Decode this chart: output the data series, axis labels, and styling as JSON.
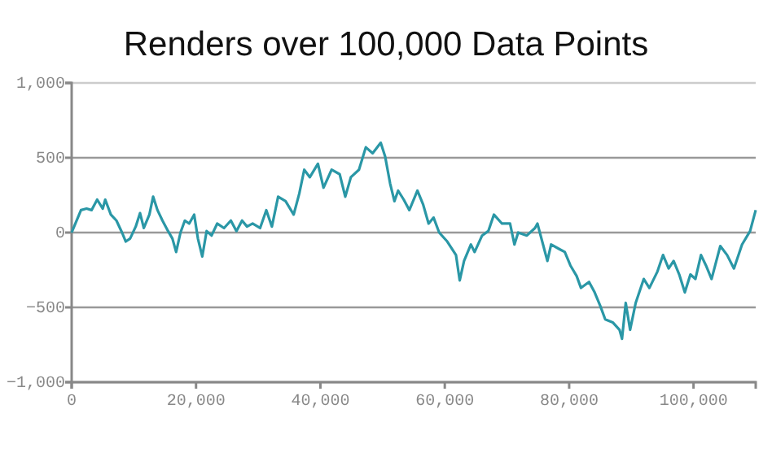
{
  "chart_data": {
    "type": "line",
    "title": "Renders over 100,000 Data Points",
    "xlim": [
      0,
      110000
    ],
    "xticks": [
      {
        "value": 0,
        "label": "0"
      },
      {
        "value": 20000,
        "label": "20,000"
      },
      {
        "value": 40000,
        "label": "40,000"
      },
      {
        "value": 60000,
        "label": "60,000"
      },
      {
        "value": 80000,
        "label": "80,000"
      },
      {
        "value": 100000,
        "label": "100,000"
      }
    ],
    "ylim": [
      -1000,
      1000
    ],
    "yticks": [
      {
        "value": -1000,
        "label": "−1,000"
      },
      {
        "value": -500,
        "label": "−500"
      },
      0,
      500,
      {
        "value": 1000,
        "label": "1,000"
      }
    ],
    "grid": "y",
    "marker": "none",
    "line_style": "solid",
    "series": [
      {
        "color": "#2a97a6",
        "x": [
          0,
          600,
          1500,
          2400,
          3200,
          4100,
          5000,
          5400,
          6300,
          7200,
          8100,
          8700,
          9400,
          10300,
          11000,
          11600,
          12500,
          13100,
          13800,
          14600,
          15500,
          16200,
          16800,
          17500,
          18200,
          18900,
          19700,
          20300,
          21000,
          21700,
          22500,
          23400,
          24500,
          25600,
          26500,
          27400,
          28200,
          29100,
          30300,
          31300,
          32200,
          33200,
          34400,
          35700,
          36600,
          37400,
          38300,
          39600,
          40500,
          41800,
          43100,
          44000,
          44900,
          46200,
          47300,
          48400,
          49700,
          50400,
          51200,
          51900,
          52500,
          53400,
          54300,
          55600,
          56500,
          57400,
          58200,
          59100,
          60400,
          61800,
          62400,
          63100,
          64200,
          64800,
          66000,
          67000,
          67900,
          69200,
          70500,
          71200,
          71800,
          73200,
          74500,
          74900,
          75800,
          76500,
          77100,
          78400,
          79300,
          80200,
          81200,
          81900,
          83200,
          84100,
          85000,
          85800,
          87000,
          88100,
          88500,
          89100,
          89800,
          90700,
          92000,
          92900,
          94200,
          95100,
          96000,
          96800,
          97700,
          98600,
          99500,
          100300,
          101200,
          102000,
          102900,
          104300,
          105400,
          106500,
          107800,
          109100,
          110000
        ],
        "values": [
          0,
          60,
          150,
          160,
          150,
          220,
          160,
          220,
          120,
          80,
          0,
          -60,
          -40,
          40,
          130,
          30,
          120,
          240,
          150,
          80,
          10,
          -40,
          -130,
          0,
          80,
          60,
          120,
          -40,
          -160,
          10,
          -20,
          60,
          30,
          80,
          10,
          80,
          40,
          60,
          30,
          150,
          40,
          240,
          210,
          120,
          260,
          420,
          370,
          460,
          300,
          420,
          390,
          240,
          370,
          420,
          570,
          530,
          600,
          510,
          330,
          210,
          280,
          220,
          150,
          280,
          190,
          60,
          100,
          0,
          -60,
          -150,
          -320,
          -190,
          -80,
          -130,
          -20,
          10,
          120,
          60,
          60,
          -80,
          0,
          -20,
          30,
          60,
          -80,
          -190,
          -80,
          -110,
          -130,
          -220,
          -290,
          -370,
          -330,
          -400,
          -490,
          -580,
          -600,
          -650,
          -710,
          -470,
          -650,
          -470,
          -310,
          -370,
          -260,
          -150,
          -240,
          -190,
          -280,
          -400,
          -280,
          -310,
          -150,
          -220,
          -310,
          -90,
          -150,
          -240,
          -80,
          10,
          150
        ]
      }
    ]
  }
}
